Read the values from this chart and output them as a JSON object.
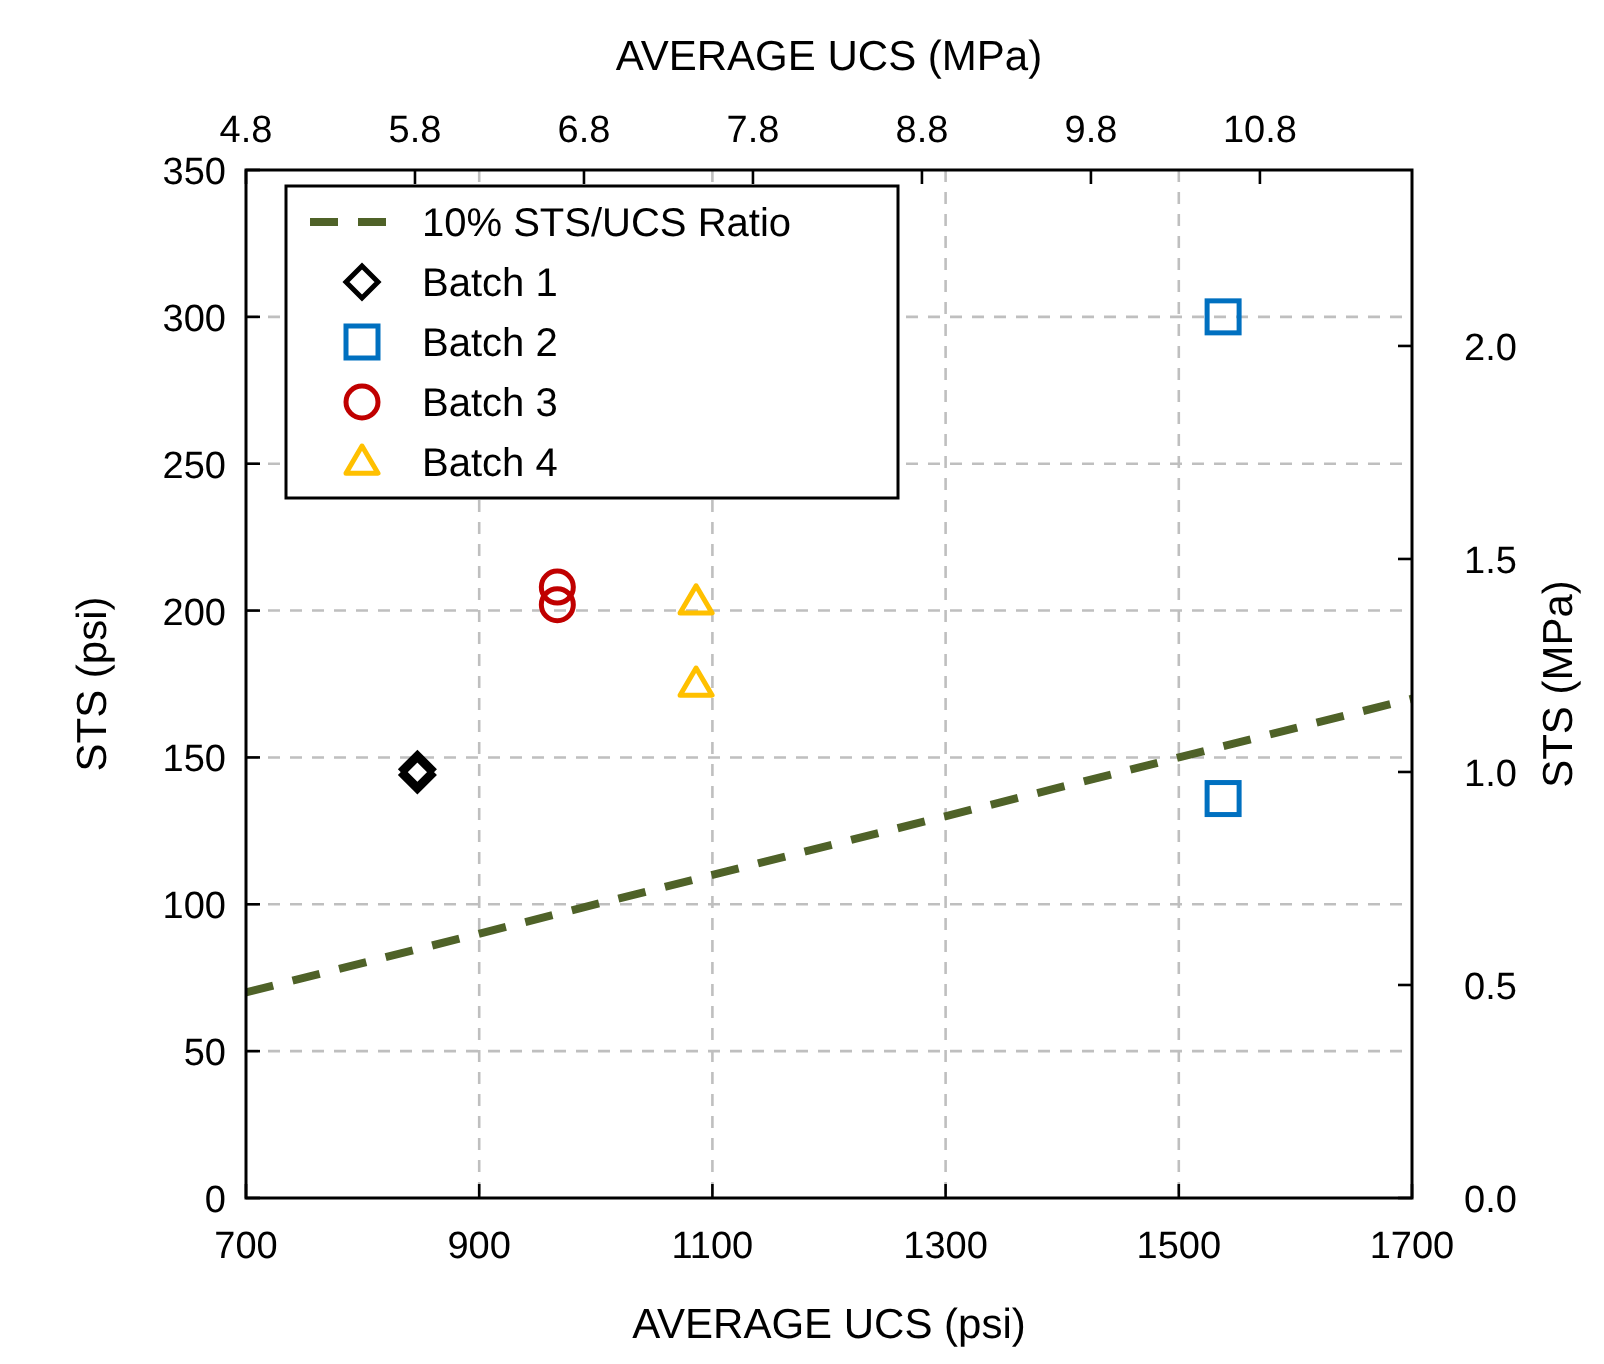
{
  "chart_data": {
    "type": "scatter",
    "xlabel": "AVERAGE UCS (psi)",
    "ylabel": "STS (psi)",
    "x2label": "AVERAGE UCS (MPa)",
    "y2label": "STS (MPa)",
    "xlim": [
      700,
      1700
    ],
    "xticks": [
      700,
      900,
      1100,
      1300,
      1500,
      1700
    ],
    "ylim": [
      0,
      350
    ],
    "yticks": [
      0,
      50,
      100,
      150,
      200,
      250,
      300,
      350
    ],
    "x2lim": [
      4.8,
      11.7
    ],
    "x2ticks": [
      4.8,
      5.8,
      6.8,
      7.8,
      8.8,
      9.8,
      10.8
    ],
    "y2lim": [
      0,
      2.413
    ],
    "y2ticks": [
      {
        "value": 0,
        "label": "0.0"
      },
      {
        "value": 0.5,
        "label": "0.5"
      },
      {
        "value": 1,
        "label": "1.0"
      },
      {
        "value": 1.5,
        "label": "1.5"
      },
      {
        "value": 2,
        "label": "2.0"
      }
    ],
    "grid": true,
    "legend": "top left",
    "series": [
      {
        "name": "10% STS/UCS Ratio",
        "type": "line",
        "color": "#4f6228",
        "line_style": "dashed",
        "marker": "none",
        "x": [
          700,
          1700
        ],
        "values": [
          70,
          170
        ]
      },
      {
        "name": "Batch 1",
        "color": "#000000",
        "marker": "diamond",
        "x": [
          847,
          847
        ],
        "values": [
          146,
          144
        ]
      },
      {
        "name": "Batch 2",
        "color": "#0070c0",
        "marker": "square",
        "x": [
          1538,
          1538
        ],
        "values": [
          300,
          136
        ]
      },
      {
        "name": "Batch 3",
        "color": "#c00000",
        "marker": "circle",
        "x": [
          967,
          967
        ],
        "values": [
          208,
          202
        ]
      },
      {
        "name": "Batch 4",
        "color": "#ffc000",
        "marker": "triangle",
        "x": [
          1086,
          1086
        ],
        "values": [
          203,
          175
        ]
      }
    ]
  }
}
